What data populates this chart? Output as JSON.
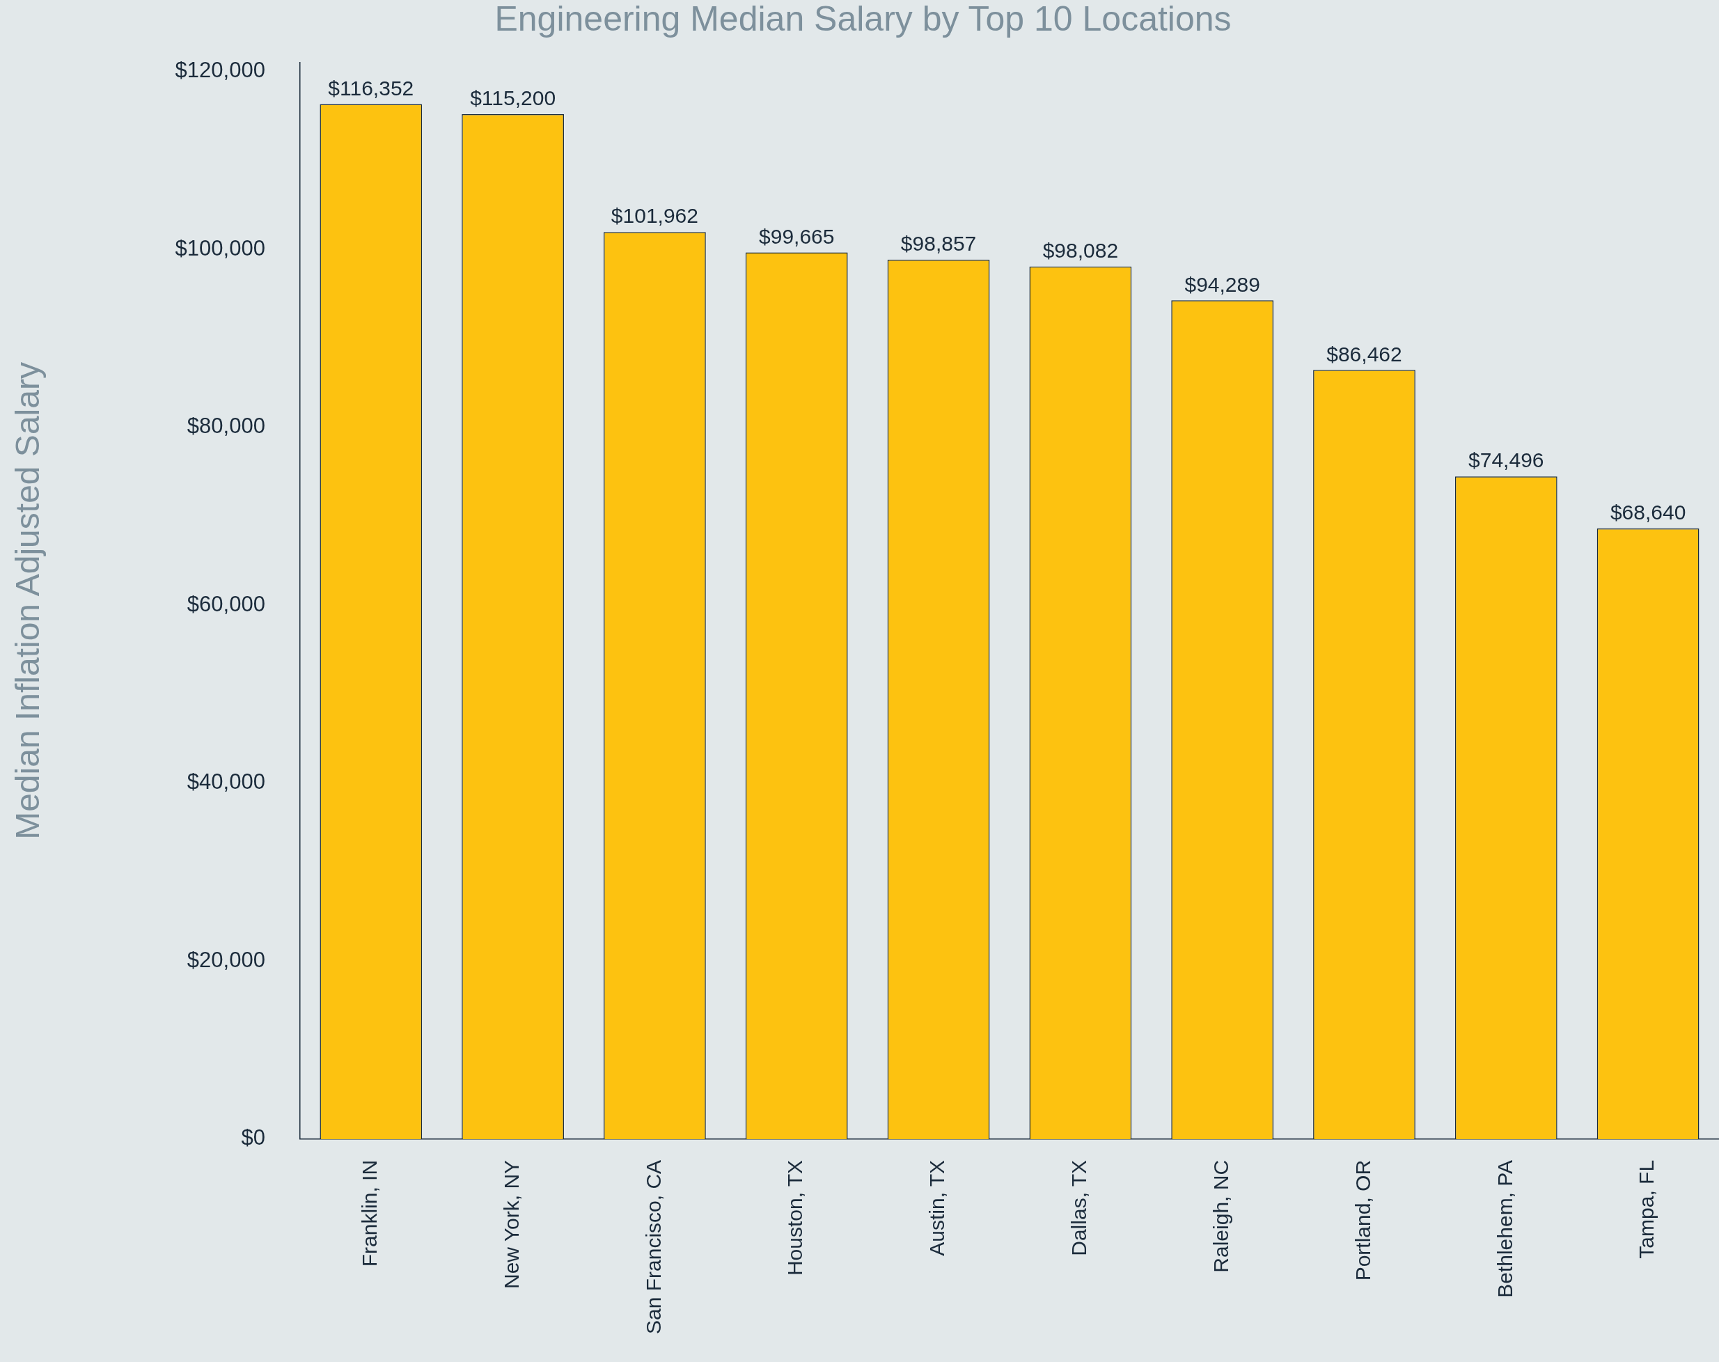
{
  "chart_data": {
    "type": "bar",
    "title": "Engineering Median Salary by Top 10 Locations",
    "ylabel": "Median Inflation Adjusted Salary",
    "categories": [
      "Franklin, IN",
      "New York, NY",
      "San Francisco, CA",
      "Houston, TX",
      "Austin, TX",
      "Dallas, TX",
      "Raleigh, NC",
      "Portland, OR",
      "Bethlehem, PA",
      "Tampa, FL"
    ],
    "values": [
      116352,
      115200,
      101962,
      99665,
      98857,
      98082,
      94289,
      86462,
      74496,
      68640
    ],
    "value_labels": [
      "$116,352",
      "$115,200",
      "$101,962",
      "$99,665",
      "$98,857",
      "$98,082",
      "$94,289",
      "$86,462",
      "$74,496",
      "$68,640"
    ],
    "color": "#fdc210",
    "ylim": [
      0,
      121000
    ],
    "yticks": [
      {
        "value": 0,
        "label": "$0"
      },
      {
        "value": 20000,
        "label": "$20,000"
      },
      {
        "value": 40000,
        "label": "$40,000"
      },
      {
        "value": 60000,
        "label": "$60,000"
      },
      {
        "value": 80000,
        "label": "$80,000"
      },
      {
        "value": 100000,
        "label": "$100,000"
      },
      {
        "value": 120000,
        "label": "$120,000"
      }
    ],
    "grid": false,
    "legend": false
  }
}
